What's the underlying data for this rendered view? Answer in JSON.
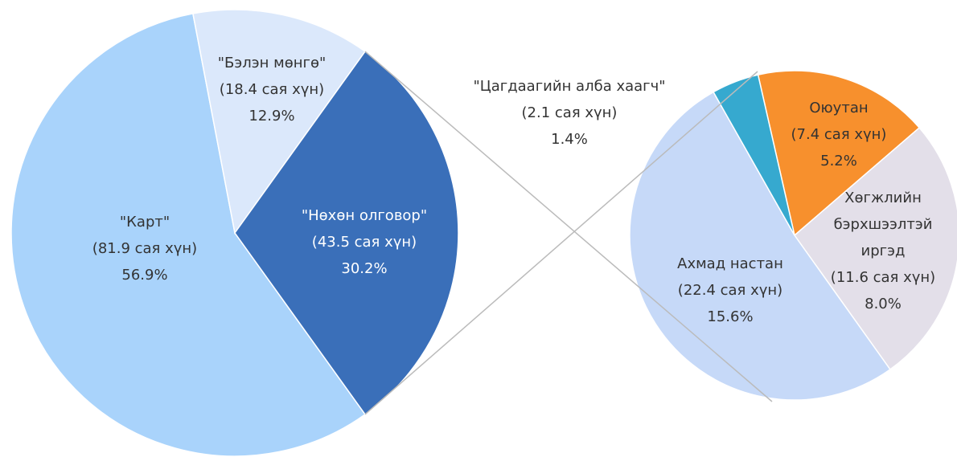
{
  "chart_data": {
    "type": "pie_of_pie",
    "categories": [
      "\"Карт\"",
      "\"Бэлэн мөнгө\"",
      "\"Нөхөн олговор\""
    ],
    "values": [
      56.9,
      12.9,
      30.2
    ],
    "value_labels": [
      "56.9%",
      "12.9%",
      "30.2%"
    ],
    "people_labels": [
      "(81.9 сая хүн)",
      "(18.4 сая хүн)",
      "(43.5 сая хүн)"
    ],
    "colors": [
      "#a9d3fb",
      "#dbe8fb",
      "#3a6fb9"
    ],
    "secondary": {
      "categories": [
        "Оюутан",
        "Хөгжлийн бэрхшээлтэй иргэд",
        "Ахмад настан",
        "\"Цагдаагийн алба хаагч\""
      ],
      "values": [
        5.2,
        8.0,
        15.6,
        1.4
      ],
      "value_labels": [
        "5.2%",
        "8.0%",
        "15.6%",
        "1.4%"
      ],
      "people_labels": [
        "(7.4 сая хүн)",
        "(11.6 сая хүн)",
        "(22.4 сая хүн)",
        "(2.1 сая хүн)"
      ],
      "colors": [
        "#f7902d",
        "#e3dfe9",
        "#c6d9f8",
        "#36a9cf"
      ]
    }
  }
}
